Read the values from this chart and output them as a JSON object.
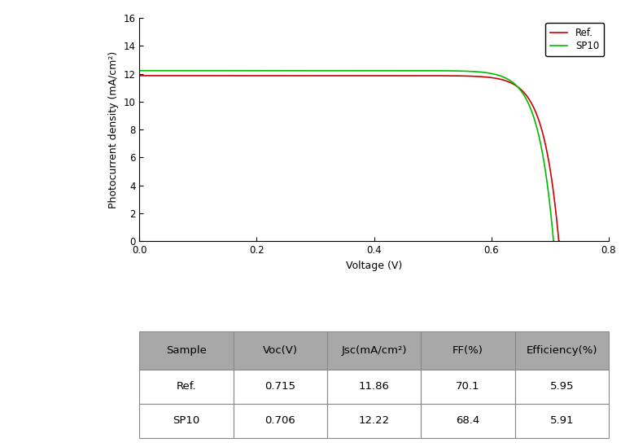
{
  "xlabel": "Voltage (V)",
  "ylabel": "Photocurrent density (mA/cm²)",
  "xlim": [
    0.0,
    0.8
  ],
  "ylim": [
    0,
    16
  ],
  "yticks": [
    0,
    2,
    4,
    6,
    8,
    10,
    12,
    14,
    16
  ],
  "xticks": [
    0.0,
    0.2,
    0.4,
    0.6,
    0.8
  ],
  "ref_color": "#cc0000",
  "sp10_color": "#00bb00",
  "legend_labels": [
    "Ref.",
    "SP10"
  ],
  "table_headers": [
    "Sample",
    "Voc(V)",
    "Jsc(mA/cm²)",
    "FF(%)",
    "Efficiency(%)"
  ],
  "table_data": [
    [
      "Ref.",
      "0.715",
      "11.86",
      "70.1",
      "5.95"
    ],
    [
      "SP10",
      "0.706",
      "12.22",
      "68.4",
      "5.91"
    ]
  ],
  "ref_Jsc": 11.86,
  "ref_Voc": 0.715,
  "sp10_Jsc": 12.22,
  "sp10_Voc": 0.706,
  "ideality_ref": 1.0,
  "ideality_sp10": 1.0,
  "header_bg": "#a8a8a8",
  "row_bg": "#ffffff",
  "table_border": "#888888",
  "linewidth": 1.2
}
